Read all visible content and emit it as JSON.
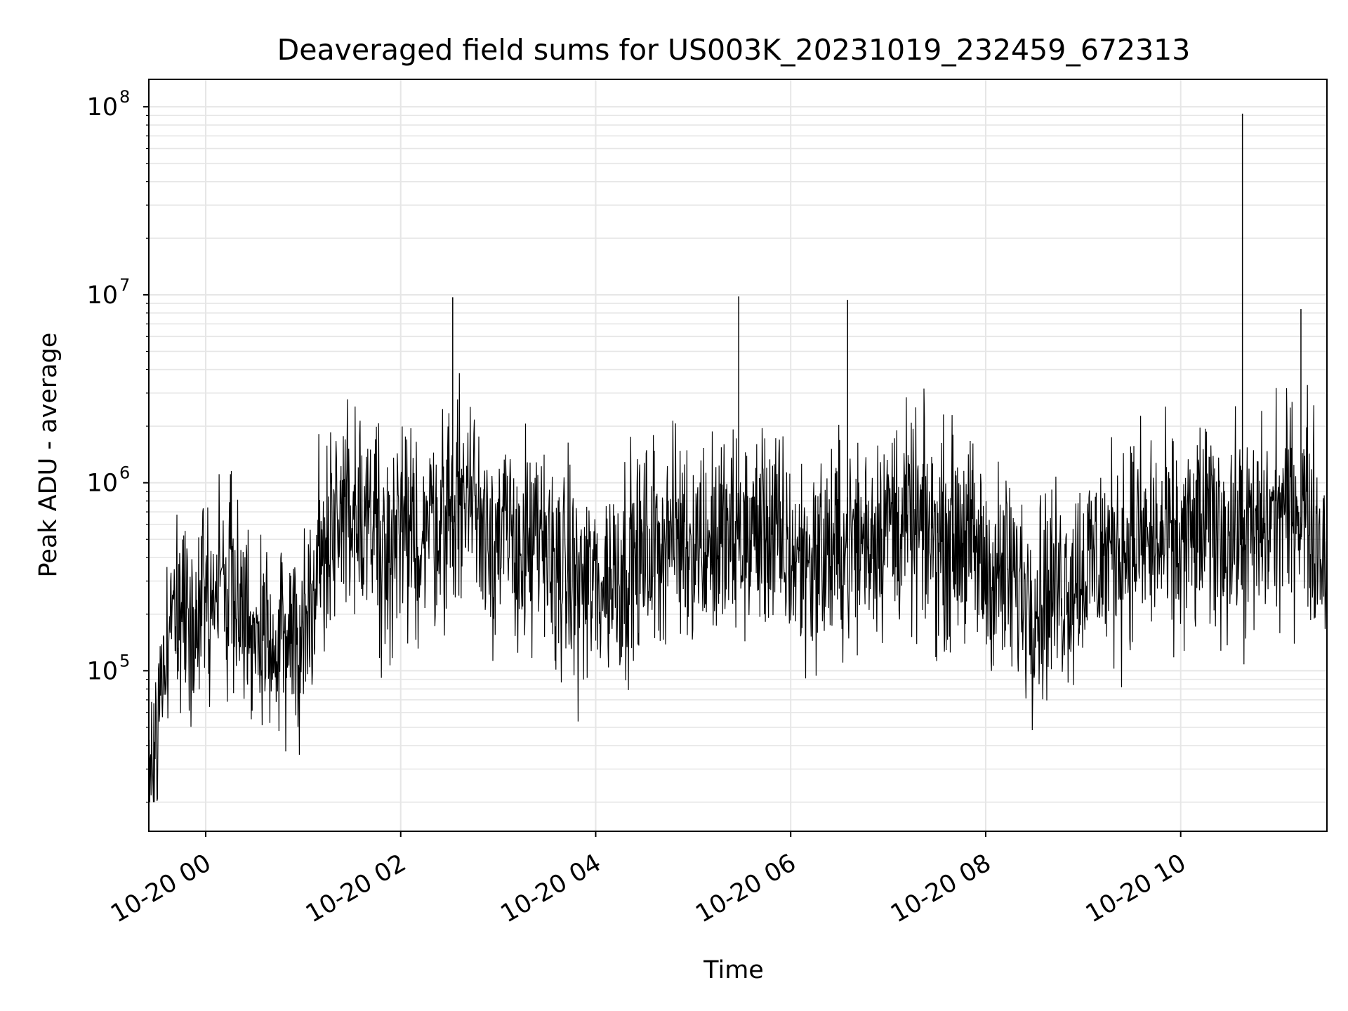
{
  "chart_data": {
    "type": "line",
    "title": "Deaveraged field sums for US003K_20231019_232459_672313",
    "xlabel": "Time",
    "ylabel": "Peak ADU - average",
    "yscale": "log",
    "ylim": [
      14000,
      140000000
    ],
    "xlim": [
      "2023-10-19 23:25",
      "2023-10-20 11:30"
    ],
    "grid": true,
    "grid_minor": true,
    "line_color": "#000000",
    "grid_color": "#e6e6e6",
    "x_ticks": [
      {
        "value": "2023-10-20 00:00",
        "label": "10-20 00"
      },
      {
        "value": "2023-10-20 02:00",
        "label": "10-20 02"
      },
      {
        "value": "2023-10-20 04:00",
        "label": "10-20 04"
      },
      {
        "value": "2023-10-20 06:00",
        "label": "10-20 06"
      },
      {
        "value": "2023-10-20 08:00",
        "label": "10-20 08"
      },
      {
        "value": "2023-10-20 10:00",
        "label": "10-20 10"
      }
    ],
    "y_ticks": [
      {
        "value": 100000,
        "base": "10",
        "exp": "5"
      },
      {
        "value": 1000000,
        "base": "10",
        "exp": "6"
      },
      {
        "value": 10000000,
        "base": "10",
        "exp": "7"
      },
      {
        "value": 100000000,
        "base": "10",
        "exp": "8"
      }
    ],
    "series": [
      {
        "x": [
          "2023-10-19 23:25",
          "2023-10-19 23:30",
          "2023-10-19 23:35",
          "2023-10-19 23:40",
          "2023-10-19 23:45",
          "2023-10-19 23:50",
          "2023-10-19 23:55",
          "2023-10-20 00:00",
          "2023-10-20 00:10",
          "2023-10-20 00:20",
          "2023-10-20 00:30",
          "2023-10-20 00:40",
          "2023-10-20 00:50",
          "2023-10-20 01:00",
          "2023-10-20 01:10",
          "2023-10-20 01:20",
          "2023-10-20 01:30",
          "2023-10-20 01:40",
          "2023-10-20 01:50",
          "2023-10-20 02:00",
          "2023-10-20 02:10",
          "2023-10-20 02:20",
          "2023-10-20 02:30",
          "2023-10-20 02:40",
          "2023-10-20 02:50",
          "2023-10-20 03:00",
          "2023-10-20 03:15",
          "2023-10-20 03:30",
          "2023-10-20 03:45",
          "2023-10-20 04:00",
          "2023-10-20 04:15",
          "2023-10-20 04:30",
          "2023-10-20 04:45",
          "2023-10-20 05:00",
          "2023-10-20 05:15",
          "2023-10-20 05:30",
          "2023-10-20 05:45",
          "2023-10-20 06:00",
          "2023-10-20 06:15",
          "2023-10-20 06:30",
          "2023-10-20 06:45",
          "2023-10-20 07:00",
          "2023-10-20 07:15",
          "2023-10-20 07:30",
          "2023-10-20 07:45",
          "2023-10-20 08:00",
          "2023-10-20 08:15",
          "2023-10-20 08:30",
          "2023-10-20 08:45",
          "2023-10-20 09:00",
          "2023-10-20 09:15",
          "2023-10-20 09:30",
          "2023-10-20 09:45",
          "2023-10-20 10:00",
          "2023-10-20 10:15",
          "2023-10-20 10:30",
          "2023-10-20 10:45",
          "2023-10-20 11:00",
          "2023-10-20 11:15",
          "2023-10-20 11:30"
        ],
        "y": [
          30000,
          45000,
          150000,
          220000,
          180000,
          260000,
          200000,
          250000,
          300000,
          280000,
          140000,
          110000,
          150000,
          160000,
          400000,
          600000,
          800000,
          700000,
          500000,
          450000,
          500000,
          650000,
          700000,
          900000,
          700000,
          500000,
          450000,
          420000,
          300000,
          280000,
          350000,
          420000,
          550000,
          500000,
          480000,
          500000,
          600000,
          400000,
          400000,
          450000,
          500000,
          650000,
          600000,
          500000,
          550000,
          350000,
          300000,
          250000,
          280000,
          350000,
          420000,
          500000,
          480000,
          450000,
          600000,
          550000,
          500000,
          700000,
          800000,
          400000
        ]
      }
    ],
    "spikes": [
      {
        "x": "2023-10-20 02:32",
        "y": 9700000
      },
      {
        "x": "2023-10-20 05:28",
        "y": 9800000
      },
      {
        "x": "2023-10-20 06:35",
        "y": 9400000
      },
      {
        "x": "2023-10-20 10:38",
        "y": 92000000
      },
      {
        "x": "2023-10-20 11:14",
        "y": 8400000
      }
    ]
  }
}
